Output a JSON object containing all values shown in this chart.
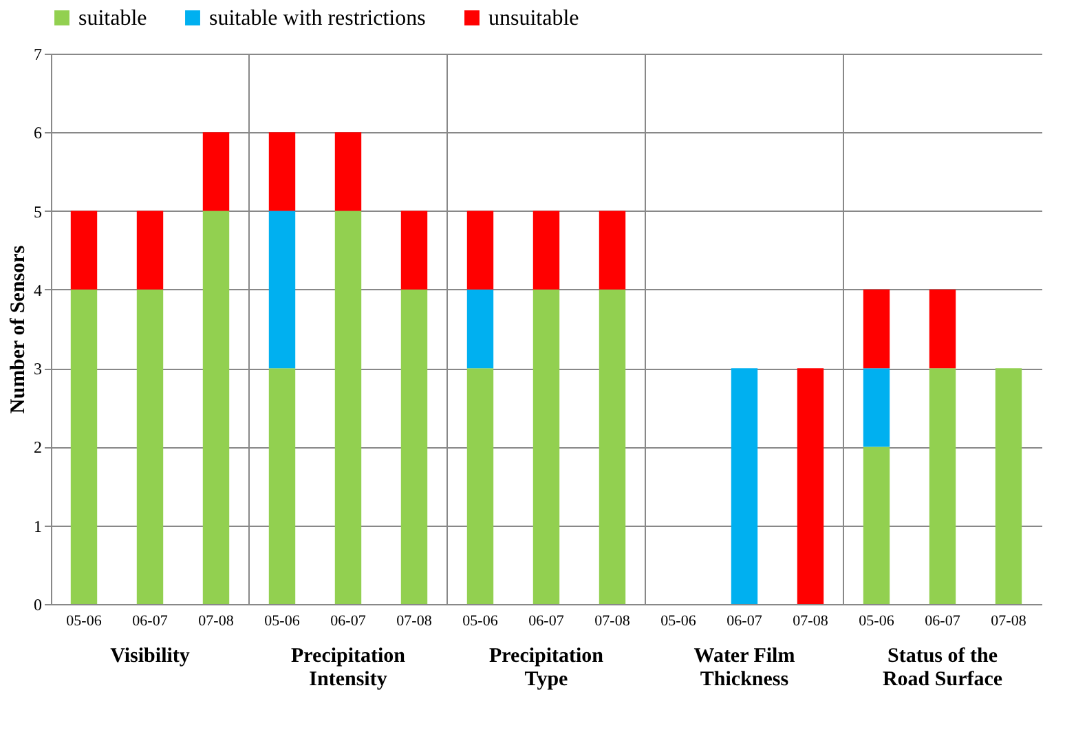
{
  "chart_data": {
    "type": "bar",
    "stacked": true,
    "ylabel": "Number of Sensors",
    "categories": [
      "05-06",
      "06-07",
      "07-08",
      "05-06",
      "06-07",
      "07-08",
      "05-06",
      "06-07",
      "07-08",
      "05-06",
      "06-07",
      "07-08",
      "05-06",
      "06-07",
      "07-08"
    ],
    "series": [
      {
        "name": "suitable",
        "color": "#92d050",
        "values": [
          4,
          4,
          5,
          3,
          5,
          4,
          3,
          4,
          4,
          0,
          0,
          0,
          2,
          3,
          3
        ]
      },
      {
        "name": "suitable with restrictions",
        "color": "#00b0f0",
        "values": [
          0,
          0,
          0,
          2,
          0,
          0,
          1,
          0,
          0,
          0,
          3,
          0,
          1,
          0,
          0
        ]
      },
      {
        "name": "unsuitable",
        "color": "#ff0000",
        "values": [
          1,
          1,
          1,
          1,
          1,
          1,
          1,
          1,
          1,
          0,
          0,
          3,
          1,
          1,
          0
        ]
      }
    ],
    "annotations": [
      "Visibility",
      "Precipitation\nIntensity",
      "Precipitation\nType",
      "Water Film\nThickness",
      "Status of the\nRoad Surface"
    ],
    "ylim": [
      0,
      7
    ],
    "yticks": [
      0,
      1,
      2,
      3,
      4,
      5,
      6,
      7
    ],
    "grid": "y",
    "legend": "top"
  }
}
